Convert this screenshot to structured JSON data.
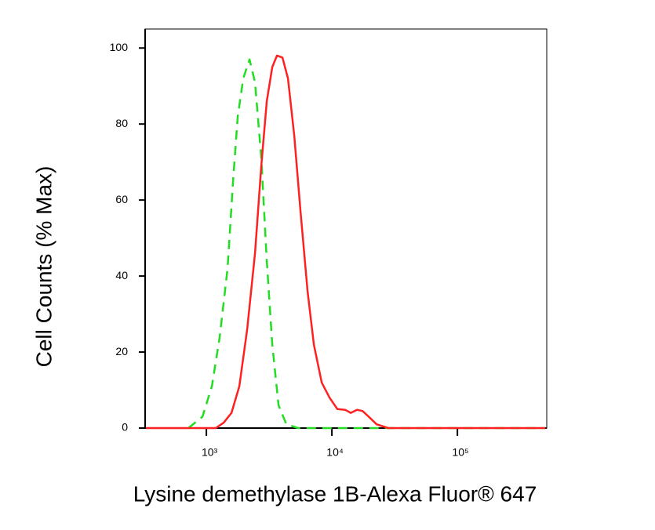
{
  "chart_data": {
    "type": "line",
    "x_label": "Lysine demethylase 1B-Alexa Fluor® 647",
    "y_label": "Cell Counts (% Max)",
    "xscale": "log",
    "xlim": [
      325,
      515000
    ],
    "ylim": [
      0,
      105
    ],
    "xticks": [
      {
        "value": 1000,
        "label": "10³"
      },
      {
        "value": 10000,
        "label": "10⁴"
      },
      {
        "value": 100000,
        "label": "10⁵"
      }
    ],
    "yticks": [
      0,
      20,
      40,
      60,
      80,
      100
    ],
    "series": [
      {
        "color": "#22dd22",
        "dashed": true,
        "x": [
          718,
          931,
          1106,
          1277,
          1474,
          1631,
          1778,
          1967,
          2206,
          2441,
          2738,
          3027,
          3350,
          3758,
          4340,
          5383,
          500000
        ],
        "values": [
          0,
          3,
          11,
          24,
          42,
          65,
          82,
          92,
          97,
          91,
          71,
          44,
          22,
          6,
          1,
          0,
          0
        ]
      },
      {
        "color": "#ff2020",
        "dashed": false,
        "x": [
          330,
          1189,
          1373,
          1585,
          1830,
          2113,
          2441,
          2738,
          3027,
          3350,
          3652,
          4036,
          4467,
          5012,
          5623,
          6397,
          7181,
          8293,
          9575,
          11066,
          12774,
          14125,
          15849,
          17538,
          19676,
          22719,
          28184,
          500000
        ],
        "values": [
          0,
          0,
          1.4,
          4,
          11,
          26,
          46,
          69,
          86,
          95,
          98,
          97.5,
          92,
          77,
          57,
          36,
          22,
          12,
          8,
          5,
          4.8,
          4,
          4.8,
          4.5,
          3,
          1,
          0,
          0
        ]
      }
    ]
  }
}
